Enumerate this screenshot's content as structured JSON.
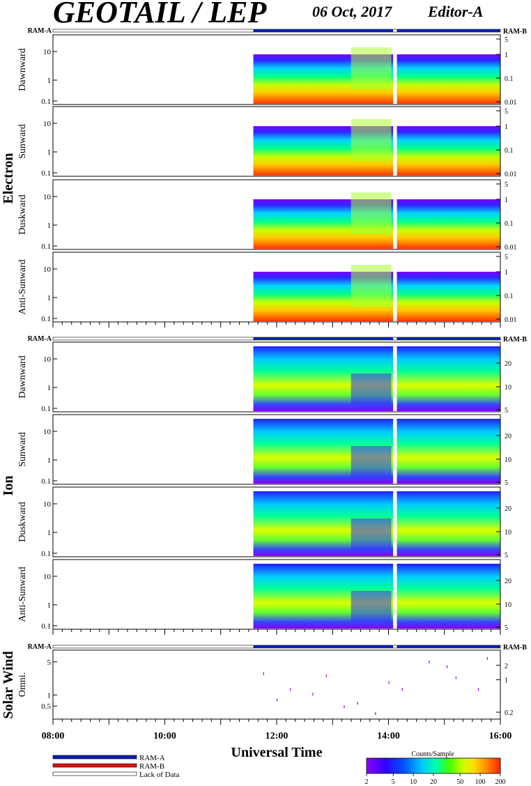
{
  "header": {
    "title": "GEOTAIL / LEP",
    "date": "06 Oct, 2017",
    "editor": "Editor-A"
  },
  "ram_labels": {
    "a": "RAM-A",
    "b": "RAM-B"
  },
  "colors": {
    "ram_a": "#0a1fb0",
    "ram_b": "#e01010",
    "lack_of_data": "#ffffff",
    "colorbar": [
      "#8800ff",
      "#3300ff",
      "#0055ff",
      "#00ccff",
      "#00ffaa",
      "#44ff00",
      "#ccff00",
      "#ffdd00",
      "#ff8800",
      "#ff2200"
    ]
  },
  "chart_data": {
    "type": "heatmap",
    "xlabel": "Universal Time",
    "x_range": [
      "08:00",
      "16:00"
    ],
    "x_ticks": [
      "08:00",
      "10:00",
      "12:00",
      "14:00",
      "16:00"
    ],
    "data_start": "11:35",
    "data_gap": [
      "14:05",
      "14:09"
    ],
    "groups": [
      {
        "name": "Electron",
        "panels": [
          {
            "name": "Dawnward",
            "left_ticks": [
              "10",
              "1",
              "0.1"
            ],
            "right_ticks": [
              "5",
              "1",
              "0.1",
              "0.01"
            ]
          },
          {
            "name": "Sunward",
            "left_ticks": [
              "10",
              "1",
              "0.1"
            ],
            "right_ticks": [
              "5",
              "1",
              "0.1",
              "0.01"
            ]
          },
          {
            "name": "Duskward",
            "left_ticks": [
              "10",
              "1",
              "0.1"
            ],
            "right_ticks": [
              "5",
              "1",
              "0.1",
              "0.01"
            ]
          },
          {
            "name": "Anti-Sunward",
            "left_ticks": [
              "10",
              "1",
              "0.1"
            ],
            "right_ticks": [
              "5",
              "1",
              "0.1",
              "0.01"
            ]
          }
        ]
      },
      {
        "name": "Ion",
        "panels": [
          {
            "name": "Dawnward",
            "left_ticks": [
              "10",
              "1",
              "0.1"
            ],
            "right_ticks": [
              "20",
              "10",
              "5"
            ]
          },
          {
            "name": "Sunward",
            "left_ticks": [
              "10",
              "1",
              "0.1"
            ],
            "right_ticks": [
              "20",
              "10",
              "5"
            ]
          },
          {
            "name": "Duskward",
            "left_ticks": [
              "10",
              "1",
              "0.1"
            ],
            "right_ticks": [
              "20",
              "10",
              "5"
            ]
          },
          {
            "name": "Anti-Sunward",
            "left_ticks": [
              "10",
              "1",
              "0.1"
            ],
            "right_ticks": [
              "20",
              "10",
              "5"
            ]
          }
        ]
      },
      {
        "name": "Solar Wind",
        "panels": [
          {
            "name": "Omni.",
            "left_ticks": [
              "5",
              "1",
              "0.5"
            ],
            "right_ticks": [
              "2",
              "1",
              "0.2"
            ]
          }
        ]
      }
    ],
    "colorbar": {
      "title": "Counts/Sample",
      "ticks": [
        "2",
        "5",
        "10",
        "20",
        "50",
        "100",
        "200"
      ]
    },
    "legend": [
      {
        "label": "RAM-A",
        "color": "#0a1fb0"
      },
      {
        "label": "RAM-B",
        "color": "#e01010"
      },
      {
        "label": "Lack of Data",
        "color": "#ffffff"
      }
    ]
  }
}
